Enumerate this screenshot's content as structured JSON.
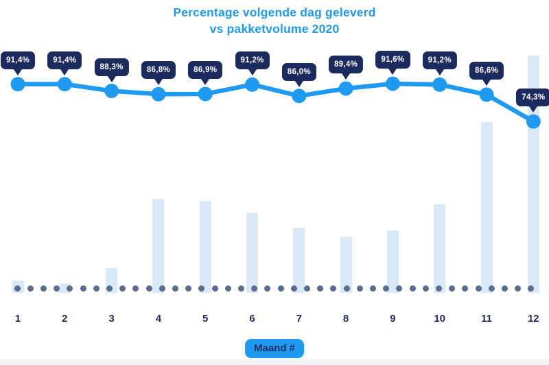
{
  "palette": {
    "accent_blue": "#1E9BF0",
    "dark_navy": "#1B2B5E",
    "bar_light_blue": "#DAE9F8",
    "baseline_dot": "#5A6C92",
    "bottom_strip": "#F4F4F6",
    "background": "#FFFFFF",
    "tooltip_text": "#FFFFFF"
  },
  "chart": {
    "title_line1": "Percentage volgende dag geleverd",
    "title_line2": "vs pakketvolume 2020",
    "x_axis_title": "Maand #"
  },
  "chart_data": [
    {
      "type": "line",
      "name": "Percentage volgende dag geleverd",
      "title": "Percentage volgende dag geleverd vs pakketvolume 2020",
      "xlabel": "Maand #",
      "ylabel": "",
      "categories": [
        "1",
        "2",
        "3",
        "4",
        "5",
        "6",
        "7",
        "8",
        "9",
        "10",
        "11",
        "12"
      ],
      "values": [
        91.4,
        91.4,
        88.3,
        86.8,
        86.9,
        91.2,
        86.0,
        89.4,
        91.6,
        91.2,
        86.6,
        74.3
      ],
      "point_labels": [
        "91,4%",
        "91,4%",
        "88,3%",
        "86,8%",
        "86,9%",
        "91,2%",
        "86,0%",
        "89,4%",
        "91,6%",
        "91,2%",
        "86,6%",
        "74,3%"
      ],
      "legend_position": "none",
      "grid": false
    },
    {
      "type": "bar",
      "name": "Pakketvolume",
      "categories": [
        "1",
        "2",
        "3",
        "4",
        "5",
        "6",
        "7",
        "8",
        "9",
        "10",
        "11",
        "12"
      ],
      "values_pct_of_max": [
        5.2,
        4.0,
        10.4,
        39.6,
        38.7,
        33.8,
        27.5,
        23.7,
        26.3,
        37.3,
        72.0,
        100.0
      ],
      "value_axis_shown": false,
      "baseline": "dotted"
    }
  ]
}
